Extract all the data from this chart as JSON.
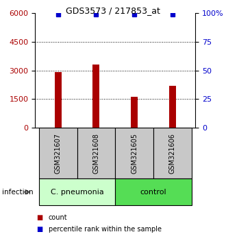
{
  "title": "GDS3573 / 217853_at",
  "samples": [
    "GSM321607",
    "GSM321608",
    "GSM321605",
    "GSM321606"
  ],
  "counts": [
    2900,
    3300,
    1600,
    2200
  ],
  "percentile_ranks": [
    99,
    99,
    99,
    99
  ],
  "bar_color": "#aa0000",
  "percentile_color": "#0000cc",
  "ylim_left": [
    0,
    6000
  ],
  "ylim_right": [
    0,
    100
  ],
  "yticks_left": [
    0,
    1500,
    3000,
    4500,
    6000
  ],
  "yticks_right": [
    0,
    25,
    50,
    75,
    100
  ],
  "groups": [
    {
      "label": "C. pneumonia",
      "color": "#ccffcc"
    },
    {
      "label": "control",
      "color": "#55dd55"
    }
  ],
  "infection_label": "infection",
  "legend_items": [
    {
      "color": "#aa0000",
      "label": "count"
    },
    {
      "color": "#0000cc",
      "label": "percentile rank within the sample"
    }
  ],
  "background_color": "#ffffff",
  "label_area_color": "#c8c8c8",
  "dotted_lines": [
    1500,
    3000,
    4500
  ],
  "figsize": [
    3.3,
    3.54
  ],
  "dpi": 100
}
